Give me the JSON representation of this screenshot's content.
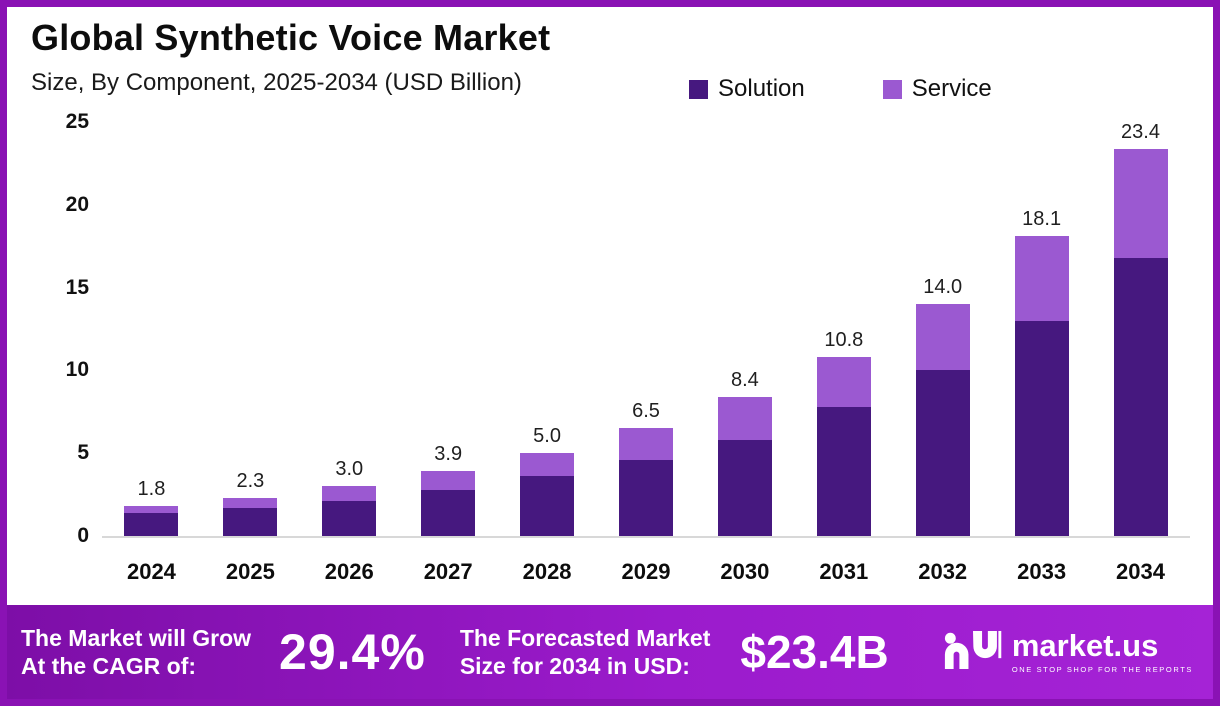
{
  "header": {
    "title": "Global Synthetic Voice Market",
    "subtitle": "Size, By Component, 2025-2034 (USD Billion)"
  },
  "legend": {
    "items": [
      {
        "label": "Solution",
        "color": "#46187f"
      },
      {
        "label": "Service",
        "color": "#9b59d1"
      }
    ]
  },
  "chart_data": {
    "type": "bar",
    "stacked": true,
    "title": "Global Synthetic Voice Market",
    "subtitle": "Size, By Component, 2025-2034 (USD Billion)",
    "unit": "USD Billion",
    "categories": [
      "2024",
      "2025",
      "2026",
      "2027",
      "2028",
      "2029",
      "2030",
      "2031",
      "2032",
      "2033",
      "2034"
    ],
    "series": [
      {
        "name": "Solution",
        "color": "#46187f",
        "values": [
          1.4,
          1.7,
          2.1,
          2.8,
          3.6,
          4.6,
          5.8,
          7.8,
          10.0,
          13.0,
          16.8
        ]
      },
      {
        "name": "Service",
        "color": "#9b59d1",
        "values": [
          0.4,
          0.6,
          0.9,
          1.1,
          1.4,
          1.9,
          2.6,
          3.0,
          4.0,
          5.1,
          6.6
        ]
      }
    ],
    "totals": [
      1.8,
      2.3,
      3.0,
      3.9,
      5.0,
      6.5,
      8.4,
      10.8,
      14.0,
      18.1,
      23.4
    ],
    "total_labels": [
      "1.8",
      "2.3",
      "3.0",
      "3.9",
      "5.0",
      "6.5",
      "8.4",
      "10.8",
      "14.0",
      "18.1",
      "23.4"
    ],
    "y_ticks": [
      25,
      20,
      15,
      10,
      5,
      0
    ],
    "ylim": [
      0,
      25
    ],
    "grid": false,
    "legend_position": "top-right"
  },
  "footer": {
    "cagr_line1": "The Market will Grow",
    "cagr_line2": "At the CAGR of:",
    "cagr_value": "29.4%",
    "forecast_line1": "The Forecasted Market",
    "forecast_line2": "Size for 2034 in USD:",
    "forecast_value": "$23.4B",
    "brand_name": "market.us",
    "brand_tagline": "ONE STOP SHOP FOR THE REPORTS"
  }
}
